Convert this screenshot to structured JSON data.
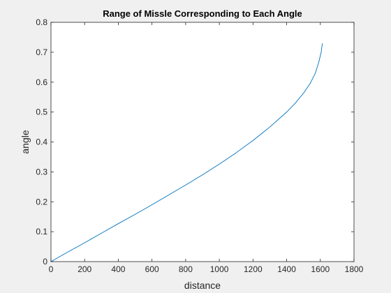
{
  "chart_data": {
    "type": "line",
    "title": "Range of Missle Corresponding to Each Angle",
    "xlabel": "distance",
    "ylabel": "angle",
    "xlim": [
      0,
      1800
    ],
    "ylim": [
      0,
      0.8
    ],
    "xticks": [
      "0",
      "200",
      "400",
      "600",
      "800",
      "1000",
      "1200",
      "1400",
      "1600",
      "1800"
    ],
    "yticks": [
      "0",
      "0.1",
      "0.2",
      "0.3",
      "0.4",
      "0.5",
      "0.6",
      "0.7",
      "0.8"
    ],
    "grid": false,
    "series": [
      {
        "color": "#0072BD",
        "x": [
          0,
          100,
          200,
          300,
          400,
          500,
          600,
          700,
          800,
          900,
          1000,
          1100,
          1200,
          1300,
          1400,
          1450,
          1500,
          1540,
          1570,
          1590,
          1605,
          1612
        ],
        "y": [
          0,
          0.032,
          0.063,
          0.095,
          0.127,
          0.158,
          0.19,
          0.223,
          0.256,
          0.29,
          0.326,
          0.364,
          0.405,
          0.45,
          0.5,
          0.529,
          0.563,
          0.596,
          0.63,
          0.665,
          0.7,
          0.73
        ]
      }
    ]
  }
}
